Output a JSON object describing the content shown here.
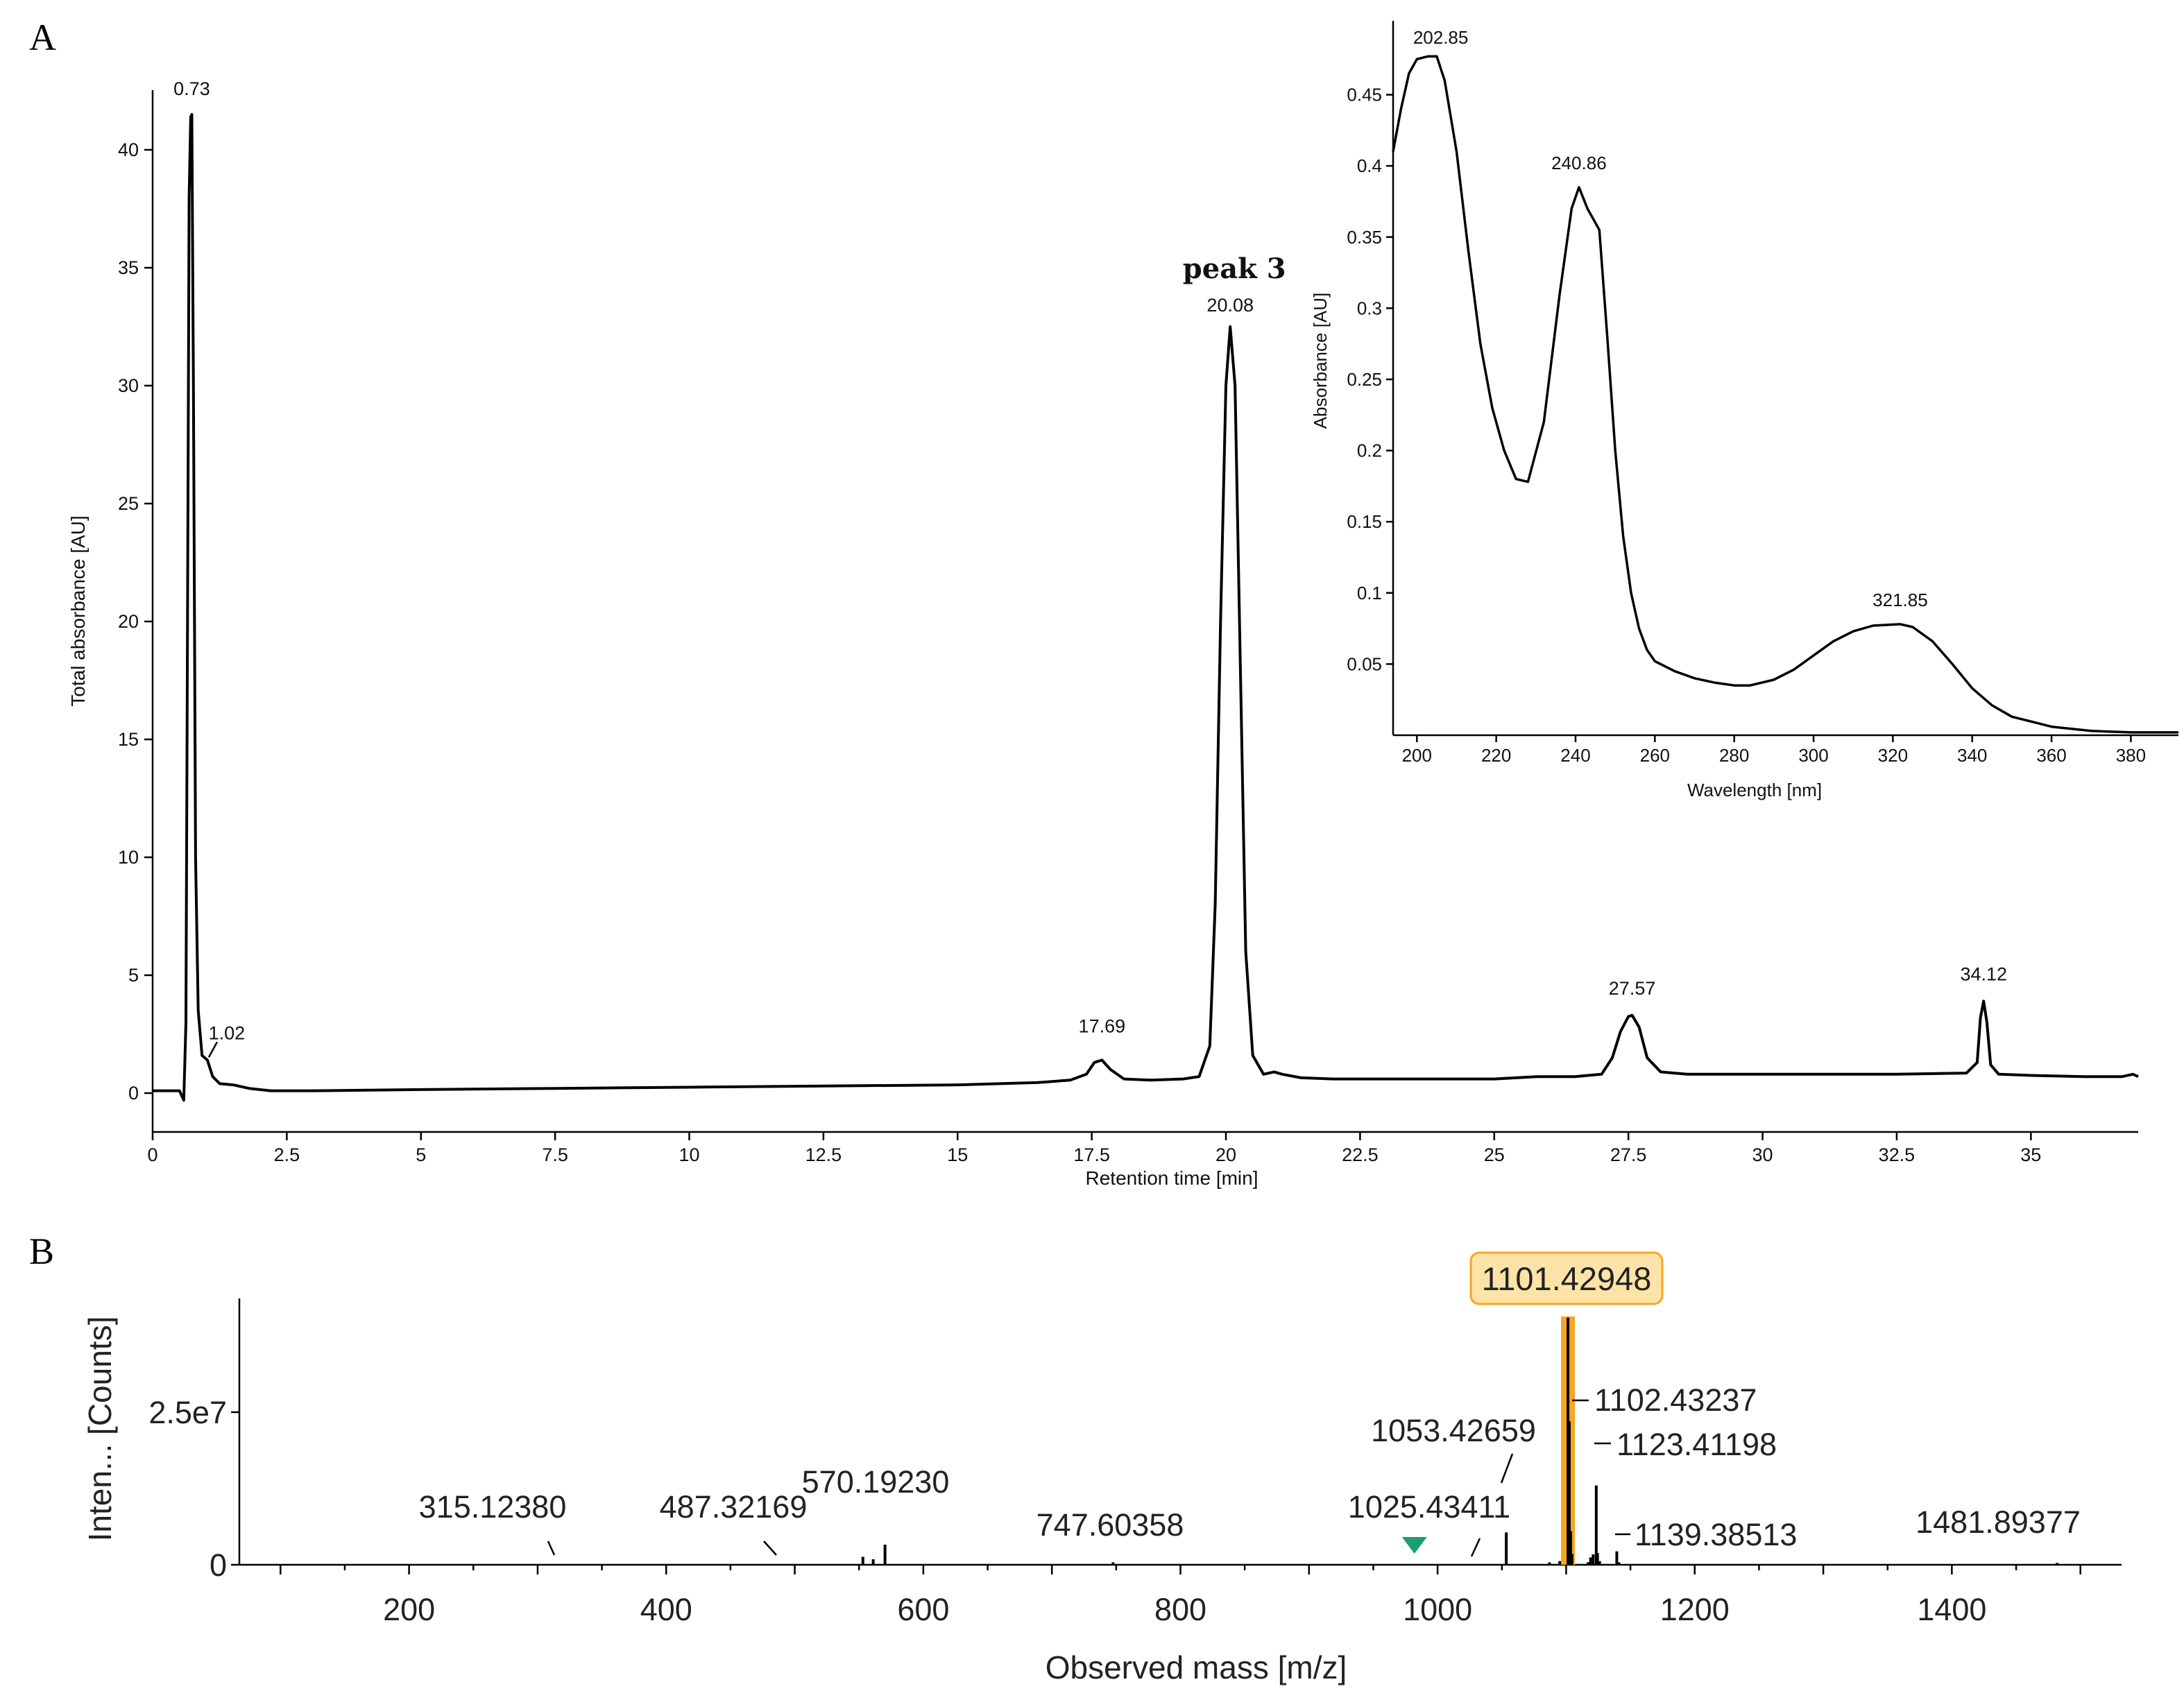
{
  "figure": {
    "panel_a_label": "A",
    "panel_b_label": "B"
  },
  "chart_data": [
    {
      "id": "chromatogram",
      "type": "line",
      "title": "",
      "xlabel": "Retention time [min]",
      "ylabel": "Total absorbance [AU]",
      "xlim": [
        0,
        37
      ],
      "ylim": [
        -1,
        42
      ],
      "x_ticks": [
        0,
        2.5,
        5,
        7.5,
        10,
        12.5,
        15,
        17.5,
        20,
        22.5,
        25,
        27.5,
        30,
        32.5,
        35
      ],
      "x_tick_labels": [
        "0",
        "2.5",
        "5",
        "7.5",
        "10",
        "12.5",
        "15",
        "17.5",
        "20",
        "22.5",
        "25",
        "27.5",
        "30",
        "32.5",
        "35"
      ],
      "y_ticks": [
        0,
        5,
        10,
        15,
        20,
        25,
        30,
        35,
        40
      ],
      "y_tick_labels": [
        "0",
        "5",
        "10",
        "15",
        "20",
        "25",
        "30",
        "35",
        "40"
      ],
      "grid": false,
      "annotation": "peak 3",
      "peaks": [
        {
          "x": 0.73,
          "y": 41.5,
          "label": "0.73"
        },
        {
          "x": 1.02,
          "y": 1.4,
          "label": "1.02"
        },
        {
          "x": 17.69,
          "y": 1.4,
          "label": "17.69"
        },
        {
          "x": 20.08,
          "y": 32.5,
          "label": "20.08"
        },
        {
          "x": 27.57,
          "y": 3.3,
          "label": "27.57"
        },
        {
          "x": 34.12,
          "y": 3.9,
          "label": "34.12"
        }
      ],
      "series": [
        {
          "x": [
            0,
            0.5,
            0.58,
            0.62,
            0.65,
            0.68,
            0.71,
            0.73,
            0.76,
            0.8,
            0.85,
            0.92,
            1.02,
            1.12,
            1.25,
            1.5,
            1.8,
            2.2,
            3,
            5,
            7.5,
            10,
            12.5,
            15,
            16.5,
            17.1,
            17.4,
            17.55,
            17.69,
            17.85,
            18.1,
            18.6,
            19.2,
            19.5,
            19.7,
            19.8,
            19.9,
            20,
            20.08,
            20.17,
            20.27,
            20.37,
            20.5,
            20.7,
            20.9,
            21.05,
            21.4,
            22,
            23,
            24,
            25,
            25.8,
            26.5,
            27,
            27.2,
            27.35,
            27.5,
            27.57,
            27.7,
            27.85,
            28.1,
            28.6,
            30,
            32.5,
            33.8,
            34,
            34.06,
            34.12,
            34.18,
            34.25,
            34.4,
            35,
            36,
            36.7,
            36.9,
            37
          ],
          "y": [
            0.1,
            0.1,
            -0.3,
            3,
            20,
            38,
            41.4,
            41.5,
            30,
            10,
            3.5,
            1.6,
            1.4,
            0.7,
            0.4,
            0.35,
            0.2,
            0.1,
            0.1,
            0.15,
            0.2,
            0.25,
            0.3,
            0.35,
            0.45,
            0.55,
            0.8,
            1.3,
            1.4,
            1.0,
            0.6,
            0.55,
            0.6,
            0.7,
            2,
            8,
            20,
            30,
            32.5,
            30,
            18,
            6,
            1.6,
            0.8,
            0.9,
            0.8,
            0.65,
            0.6,
            0.6,
            0.6,
            0.6,
            0.7,
            0.7,
            0.8,
            1.5,
            2.6,
            3.25,
            3.3,
            2.8,
            1.5,
            0.9,
            0.8,
            0.8,
            0.8,
            0.85,
            1.3,
            3.2,
            3.9,
            3.0,
            1.2,
            0.8,
            0.75,
            0.7,
            0.7,
            0.8,
            0.7
          ]
        }
      ]
    },
    {
      "id": "uv-spectrum",
      "type": "line",
      "title": "",
      "xlabel": "Wavelength [nm]",
      "ylabel": "Absorbance [AU]",
      "xlim": [
        194,
        392
      ],
      "ylim": [
        0,
        0.48
      ],
      "x_ticks": [
        200,
        220,
        240,
        260,
        280,
        300,
        320,
        340,
        360,
        380
      ],
      "x_tick_labels": [
        "200",
        "220",
        "240",
        "260",
        "280",
        "300",
        "320",
        "340",
        "360",
        "380"
      ],
      "y_ticks": [
        0.05,
        0.1,
        0.15,
        0.2,
        0.25,
        0.3,
        0.35,
        0.4,
        0.45
      ],
      "y_tick_labels": [
        "0.05",
        "0.1",
        "0.15",
        "0.2",
        "0.25",
        "0.3",
        "0.35",
        "0.4",
        "0.45"
      ],
      "grid": false,
      "peaks": [
        {
          "x": 202.85,
          "y": 0.477,
          "label": "202.85"
        },
        {
          "x": 240.86,
          "y": 0.385,
          "label": "240.86"
        },
        {
          "x": 321.85,
          "y": 0.078,
          "label": "321.85"
        }
      ],
      "series": [
        {
          "x": [
            194,
            196,
            198,
            200,
            202.85,
            205,
            207,
            210,
            213,
            216,
            219,
            222,
            225,
            228,
            232,
            236,
            239,
            240.86,
            243,
            246,
            248,
            250,
            252,
            254,
            256,
            258,
            260,
            265,
            270,
            275,
            280,
            284,
            290,
            295,
            300,
            305,
            310,
            315,
            321.85,
            325,
            330,
            335,
            340,
            345,
            350,
            360,
            370,
            380,
            392
          ],
          "y": [
            0.41,
            0.44,
            0.465,
            0.475,
            0.477,
            0.477,
            0.46,
            0.41,
            0.34,
            0.275,
            0.23,
            0.2,
            0.18,
            0.178,
            0.22,
            0.31,
            0.37,
            0.385,
            0.37,
            0.355,
            0.28,
            0.2,
            0.14,
            0.1,
            0.075,
            0.06,
            0.052,
            0.045,
            0.04,
            0.037,
            0.035,
            0.035,
            0.039,
            0.046,
            0.056,
            0.066,
            0.073,
            0.077,
            0.078,
            0.076,
            0.066,
            0.05,
            0.033,
            0.021,
            0.013,
            0.006,
            0.003,
            0.002,
            0.002
          ]
        }
      ]
    },
    {
      "id": "mass-spectrum",
      "type": "bar",
      "title": "",
      "xlabel": "Observed mass [m/z]",
      "ylabel": "Inten... [Counts]",
      "xlim": [
        68,
        1532
      ],
      "ylim": [
        0,
        45000000.0
      ],
      "x_ticks": [
        200,
        400,
        600,
        800,
        1000,
        1200,
        1400
      ],
      "x_tick_labels": [
        "200",
        "400",
        "600",
        "800",
        "1000",
        "1200",
        "1400"
      ],
      "y_ticks": [
        0,
        25000000.0
      ],
      "y_tick_labels": [
        "0",
        "2.5e7"
      ],
      "grid": false,
      "highlighted_peak": "1101.42948",
      "highlight_color": "#f5a623",
      "highlight_fill": "#fde3a7",
      "marker_color": "#1aa06e",
      "marker_x": 982,
      "sticks": [
        {
          "x": 553,
          "y": 1300000.0
        },
        {
          "x": 561,
          "y": 900000.0
        },
        {
          "x": 570.1923,
          "y": 3300000.0
        },
        {
          "x": 747.60358,
          "y": 400000.0
        },
        {
          "x": 1053.42659,
          "y": 5300000.0
        },
        {
          "x": 1087,
          "y": 400000.0
        },
        {
          "x": 1095,
          "y": 600000.0
        },
        {
          "x": 1101.42948,
          "y": 40500000.0
        },
        {
          "x": 1102.43237,
          "y": 23500000.0
        },
        {
          "x": 1103.5,
          "y": 5500000.0
        },
        {
          "x": 1104.5,
          "y": 1800000.0
        },
        {
          "x": 1117,
          "y": 400000.0
        },
        {
          "x": 1119,
          "y": 1200000.0
        },
        {
          "x": 1121,
          "y": 1700000.0
        },
        {
          "x": 1123.41198,
          "y": 13000000.0
        },
        {
          "x": 1124.4,
          "y": 1900000.0
        },
        {
          "x": 1126,
          "y": 600000.0
        },
        {
          "x": 1139.38513,
          "y": 2200000.0
        },
        {
          "x": 1141,
          "y": 400000.0
        },
        {
          "x": 1481.89377,
          "y": 300000.0
        }
      ],
      "labels": [
        {
          "text": "315.12380",
          "x": 315.1238,
          "leader": true
        },
        {
          "text": "487.32169",
          "x": 487.32169,
          "leader": true
        },
        {
          "text": "570.19230",
          "x": 570.1923,
          "leader": false
        },
        {
          "text": "747.60358",
          "x": 747.60358,
          "leader": false
        },
        {
          "text": "1025.43411",
          "x": 1025.43411,
          "leader": true
        },
        {
          "text": "1053.42659",
          "x": 1053.42659,
          "leader": true
        },
        {
          "text": "1101.42948",
          "x": 1101.42948,
          "leader": false
        },
        {
          "text": "1102.43237",
          "x": 1102.43237,
          "leader": true
        },
        {
          "text": "1123.41198",
          "x": 1123.41198,
          "leader": true
        },
        {
          "text": "1139.38513",
          "x": 1139.38513,
          "leader": true
        },
        {
          "text": "1481.89377",
          "x": 1481.89377,
          "leader": false
        }
      ]
    }
  ]
}
